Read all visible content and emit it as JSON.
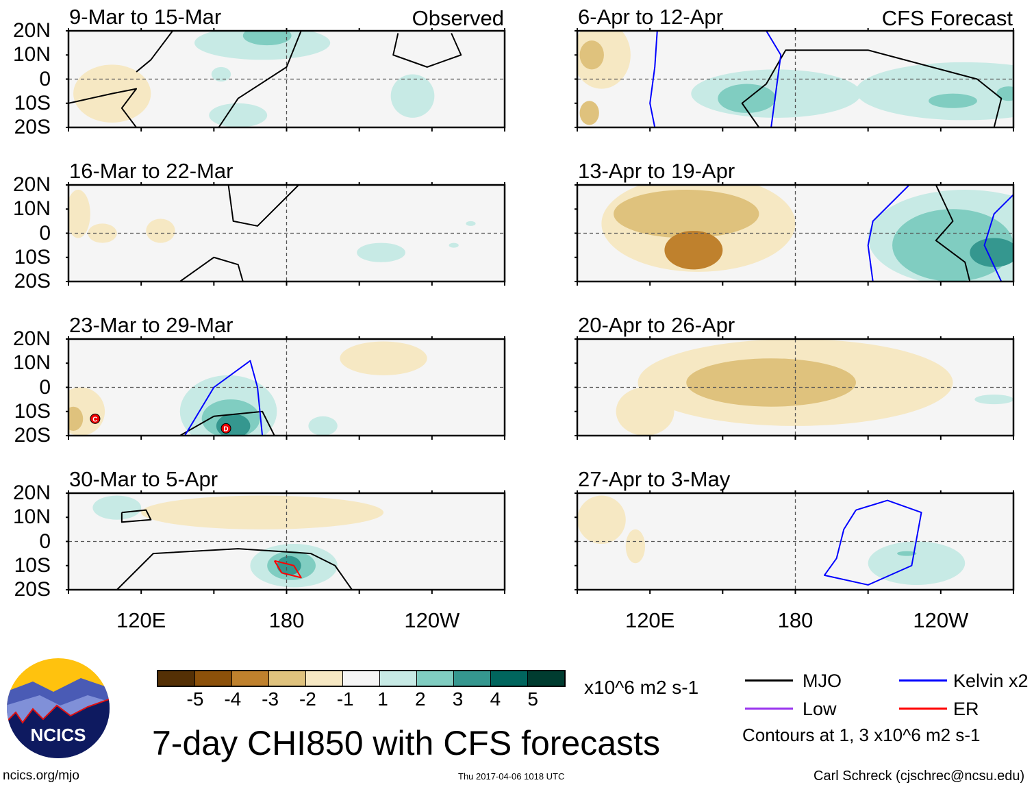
{
  "colors": [
    "#543005",
    "#8c510a",
    "#bf812d",
    "#dfc27d",
    "#f6e8c3",
    "#f5f5f5",
    "#c7eae5",
    "#80cdc1",
    "#35978f",
    "#01665e",
    "#003c30"
  ],
  "contour_colors": {
    "MJO": "#000000",
    "Kelvin": "#0000ff",
    "Low": "#9933ee",
    "ER": "#ff0000"
  },
  "lat_labels": [
    "20N",
    "10N",
    "0",
    "10S",
    "20S"
  ],
  "lon_labels": [
    "120E",
    "180",
    "120W"
  ],
  "panels": [
    {
      "title": "9-Mar to 15-Mar",
      "tag": "Observed",
      "shades": [
        [
          108,
          -6,
          16,
          12,
          4
        ],
        [
          170,
          15,
          28,
          7,
          6
        ],
        [
          172,
          18,
          10,
          4,
          7
        ],
        [
          153,
          2,
          4,
          3,
          6
        ],
        [
          232,
          -7,
          9,
          9,
          6
        ],
        [
          160,
          -15,
          12,
          5,
          6
        ]
      ],
      "contours": [
        {
          "type": "MJO",
          "pts": [
            [
              90,
              -10
            ],
            [
              108,
              -6
            ],
            [
              118,
              -4
            ],
            [
              112,
              -12
            ],
            [
              118,
              -20
            ]
          ]
        },
        {
          "type": "MJO",
          "pts": [
            [
              133,
              20
            ],
            [
              124,
              8
            ],
            [
              118,
              3
            ]
          ]
        },
        {
          "type": "MJO",
          "pts": [
            [
              186,
              20
            ],
            [
              180,
              5
            ],
            [
              160,
              -8
            ],
            [
              152,
              -20
            ]
          ]
        },
        {
          "type": "MJO",
          "pts": [
            [
              226,
              19
            ],
            [
              224,
              10
            ],
            [
              238,
              5
            ],
            [
              252,
              10
            ],
            [
              248,
              19
            ]
          ]
        }
      ]
    },
    {
      "title": "6-Apr to 12-Apr",
      "tag": "CFS Forecast",
      "shades": [
        [
          100,
          10,
          12,
          14,
          4
        ],
        [
          95,
          -14,
          4,
          5,
          3
        ],
        [
          96,
          10,
          5,
          6,
          3
        ],
        [
          172,
          -6,
          35,
          10,
          6
        ],
        [
          160,
          -8,
          12,
          6,
          7
        ],
        [
          250,
          -5,
          45,
          12,
          6
        ],
        [
          245,
          -9,
          10,
          3,
          7
        ],
        [
          268,
          -6,
          5,
          3,
          7
        ]
      ],
      "contours": [
        {
          "type": "MJO",
          "pts": [
            [
              165,
              -20
            ],
            [
              158,
              -10
            ],
            [
              168,
              -2
            ],
            [
              176,
              12
            ],
            [
              210,
              12
            ],
            [
              255,
              0
            ],
            [
              265,
              -8
            ],
            [
              262,
              -20
            ]
          ]
        },
        {
          "type": "Kelvin",
          "pts": [
            [
              123,
              20
            ],
            [
              122,
              5
            ],
            [
              120,
              -10
            ],
            [
              122,
              -20
            ]
          ]
        },
        {
          "type": "Kelvin",
          "pts": [
            [
              168,
              20
            ],
            [
              174,
              10
            ],
            [
              172,
              -5
            ],
            [
              170,
              -20
            ]
          ]
        }
      ]
    },
    {
      "title": "16-Mar to 22-Mar",
      "tag": "",
      "shades": [
        [
          94,
          8,
          5,
          10,
          4
        ],
        [
          104,
          0,
          6,
          4,
          4
        ],
        [
          128,
          1,
          6,
          5,
          4
        ],
        [
          219,
          -8,
          10,
          4,
          6
        ],
        [
          249,
          -5,
          2,
          1,
          6
        ],
        [
          256,
          4,
          2,
          1,
          6
        ]
      ],
      "contours": [
        {
          "type": "MJO",
          "pts": [
            [
              156,
              20
            ],
            [
              158,
              5
            ],
            [
              168,
              3
            ],
            [
              185,
              20
            ]
          ]
        },
        {
          "type": "MJO",
          "pts": [
            [
              136,
              -20
            ],
            [
              150,
              -10
            ],
            [
              160,
              -13
            ],
            [
              162,
              -20
            ]
          ]
        }
      ]
    },
    {
      "title": "13-Apr to 19-Apr",
      "tag": "",
      "shades": [
        [
          140,
          4,
          40,
          20,
          4
        ],
        [
          135,
          8,
          30,
          10,
          3
        ],
        [
          138,
          -7,
          12,
          8,
          2
        ],
        [
          250,
          -2,
          40,
          20,
          6
        ],
        [
          245,
          -5,
          25,
          15,
          7
        ],
        [
          262,
          -8,
          10,
          6,
          8
        ]
      ],
      "contours": [
        {
          "type": "MJO",
          "pts": [
            [
              238,
              20
            ],
            [
              245,
              5
            ],
            [
              238,
              -3
            ],
            [
              250,
              -12
            ],
            [
              252,
              -20
            ]
          ]
        },
        {
          "type": "Kelvin",
          "pts": [
            [
              227,
              20
            ],
            [
              212,
              5
            ],
            [
              210,
              -5
            ],
            [
              212,
              -20
            ]
          ]
        },
        {
          "type": "Kelvin",
          "pts": [
            [
              274,
              20
            ],
            [
              262,
              8
            ],
            [
              258,
              -5
            ],
            [
              265,
              -20
            ]
          ]
        }
      ]
    },
    {
      "title": "23-Mar to 29-Mar",
      "tag": "",
      "shades": [
        [
          95,
          -10,
          10,
          10,
          4
        ],
        [
          92,
          -13,
          4,
          5,
          3
        ],
        [
          156,
          -10,
          20,
          15,
          6
        ],
        [
          157,
          -13,
          12,
          8,
          7
        ],
        [
          158,
          -16,
          7,
          5,
          8
        ],
        [
          220,
          12,
          18,
          7,
          4
        ],
        [
          195,
          -16,
          6,
          4,
          6
        ]
      ],
      "contours": [
        {
          "type": "MJO",
          "pts": [
            [
              136,
              -20
            ],
            [
              150,
              -12
            ],
            [
              170,
              -10
            ],
            [
              175,
              -20
            ]
          ]
        },
        {
          "type": "Kelvin",
          "pts": [
            [
              138,
              -20
            ],
            [
              150,
              0
            ],
            [
              165,
              11
            ],
            [
              168,
              0
            ],
            [
              170,
              -20
            ]
          ]
        }
      ],
      "markers": [
        {
          "label": "C",
          "lon": 101,
          "lat": -13
        },
        {
          "label": "D",
          "lon": 155,
          "lat": -17
        }
      ]
    },
    {
      "title": "20-Apr to 26-Apr",
      "tag": "",
      "shades": [
        [
          180,
          2,
          65,
          18,
          4
        ],
        [
          118,
          -10,
          12,
          10,
          4
        ],
        [
          170,
          2,
          35,
          10,
          3
        ],
        [
          262,
          -5,
          8,
          2,
          6
        ]
      ],
      "contours": []
    },
    {
      "title": "30-Mar to 5-Apr",
      "tag": "",
      "shades": [
        [
          170,
          12,
          50,
          7,
          4
        ],
        [
          110,
          14,
          10,
          5,
          6
        ],
        [
          183,
          -10,
          18,
          9,
          6
        ],
        [
          182,
          -10,
          10,
          6,
          7
        ],
        [
          181,
          -10,
          5,
          4,
          8
        ]
      ],
      "contours": [
        {
          "type": "MJO",
          "pts": [
            [
              110,
              -20
            ],
            [
              125,
              -5
            ],
            [
              160,
              -3
            ],
            [
              190,
              -5
            ],
            [
              200,
              -10
            ],
            [
              207,
              -20
            ]
          ]
        },
        {
          "type": "MJO",
          "pts": [
            [
              112,
              12
            ],
            [
              122,
              13
            ],
            [
              124,
              9
            ],
            [
              112,
              8
            ],
            [
              112,
              12
            ]
          ]
        },
        {
          "type": "ER",
          "pts": [
            [
              175,
              -8
            ],
            [
              183,
              -10
            ],
            [
              186,
              -15
            ],
            [
              178,
              -13
            ],
            [
              175,
              -8
            ]
          ]
        }
      ]
    },
    {
      "title": "27-Apr to 3-May",
      "tag": "",
      "shades": [
        [
          100,
          9,
          10,
          10,
          4
        ],
        [
          114,
          -2,
          4,
          7,
          4
        ],
        [
          283,
          14,
          6,
          5,
          4
        ],
        [
          230,
          -9,
          20,
          9,
          6
        ],
        [
          226,
          -5,
          4,
          1,
          7
        ]
      ],
      "contours": [
        {
          "type": "Kelvin",
          "pts": [
            [
              205,
              13
            ],
            [
              218,
              17
            ],
            [
              232,
              12
            ],
            [
              228,
              -10
            ],
            [
              210,
              -18
            ],
            [
              192,
              -14
            ],
            [
              197,
              -7
            ],
            [
              200,
              5
            ],
            [
              205,
              13
            ]
          ]
        }
      ]
    }
  ],
  "colorbar": {
    "labels": [
      "-5",
      "-4",
      "-3",
      "-2",
      "-1",
      "1",
      "2",
      "3",
      "4",
      "5"
    ],
    "units": "x10^6 m2 s-1"
  },
  "title": "7-day CHI850 with CFS forecasts",
  "legend": {
    "mjo": "MJO",
    "kelvin": "Kelvin x2",
    "low": "Low",
    "er": "ER",
    "note": "Contours at 1, 3 x10^6 m2 s-1"
  },
  "logo": {
    "text": "NCICS"
  },
  "footer": {
    "url": "ncics.org/mjo",
    "timestamp": "Thu 2017-04-06 1018 UTC",
    "author": "Carl Schreck (cjschrec@ncsu.edu)"
  }
}
